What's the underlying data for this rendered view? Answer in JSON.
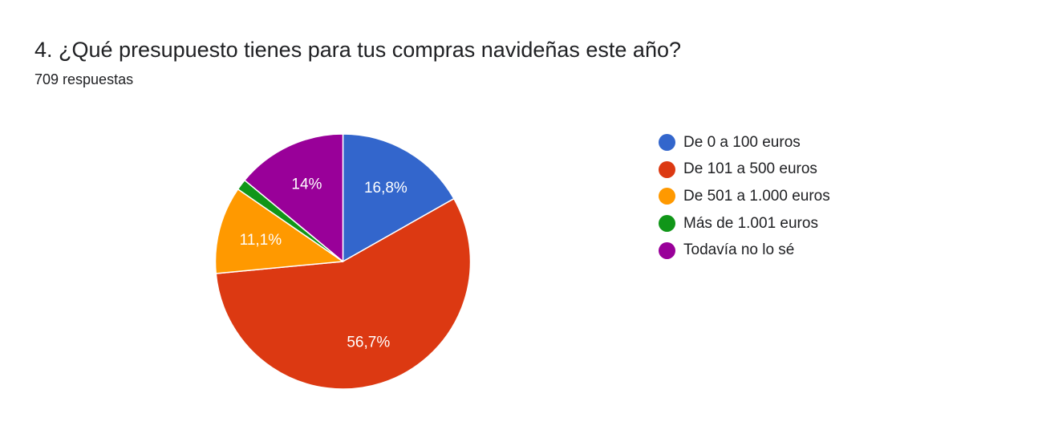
{
  "question": {
    "title": "4. ¿Qué presupuesto tienes para tus compras navideñas este año?",
    "responses": "709 respuestas"
  },
  "chart_data": {
    "type": "pie",
    "start_angle_deg": 90,
    "direction": "clockwise",
    "legend_position": "right",
    "slices": [
      {
        "label": "De 0 a 100 euros",
        "value": 16.8,
        "display": "16,8%",
        "color": "#3366cc"
      },
      {
        "label": "De 101 a 500 euros",
        "value": 56.7,
        "display": "56,7%",
        "color": "#dc3912"
      },
      {
        "label": "De 501 a 1.000 euros",
        "value": 11.1,
        "display": "11,1%",
        "color": "#ff9900"
      },
      {
        "label": "Más de 1.001 euros",
        "value": 1.4,
        "display": "",
        "color": "#109618"
      },
      {
        "label": "Todavía no lo sé",
        "value": 14.0,
        "display": "14%",
        "color": "#990099"
      }
    ]
  }
}
